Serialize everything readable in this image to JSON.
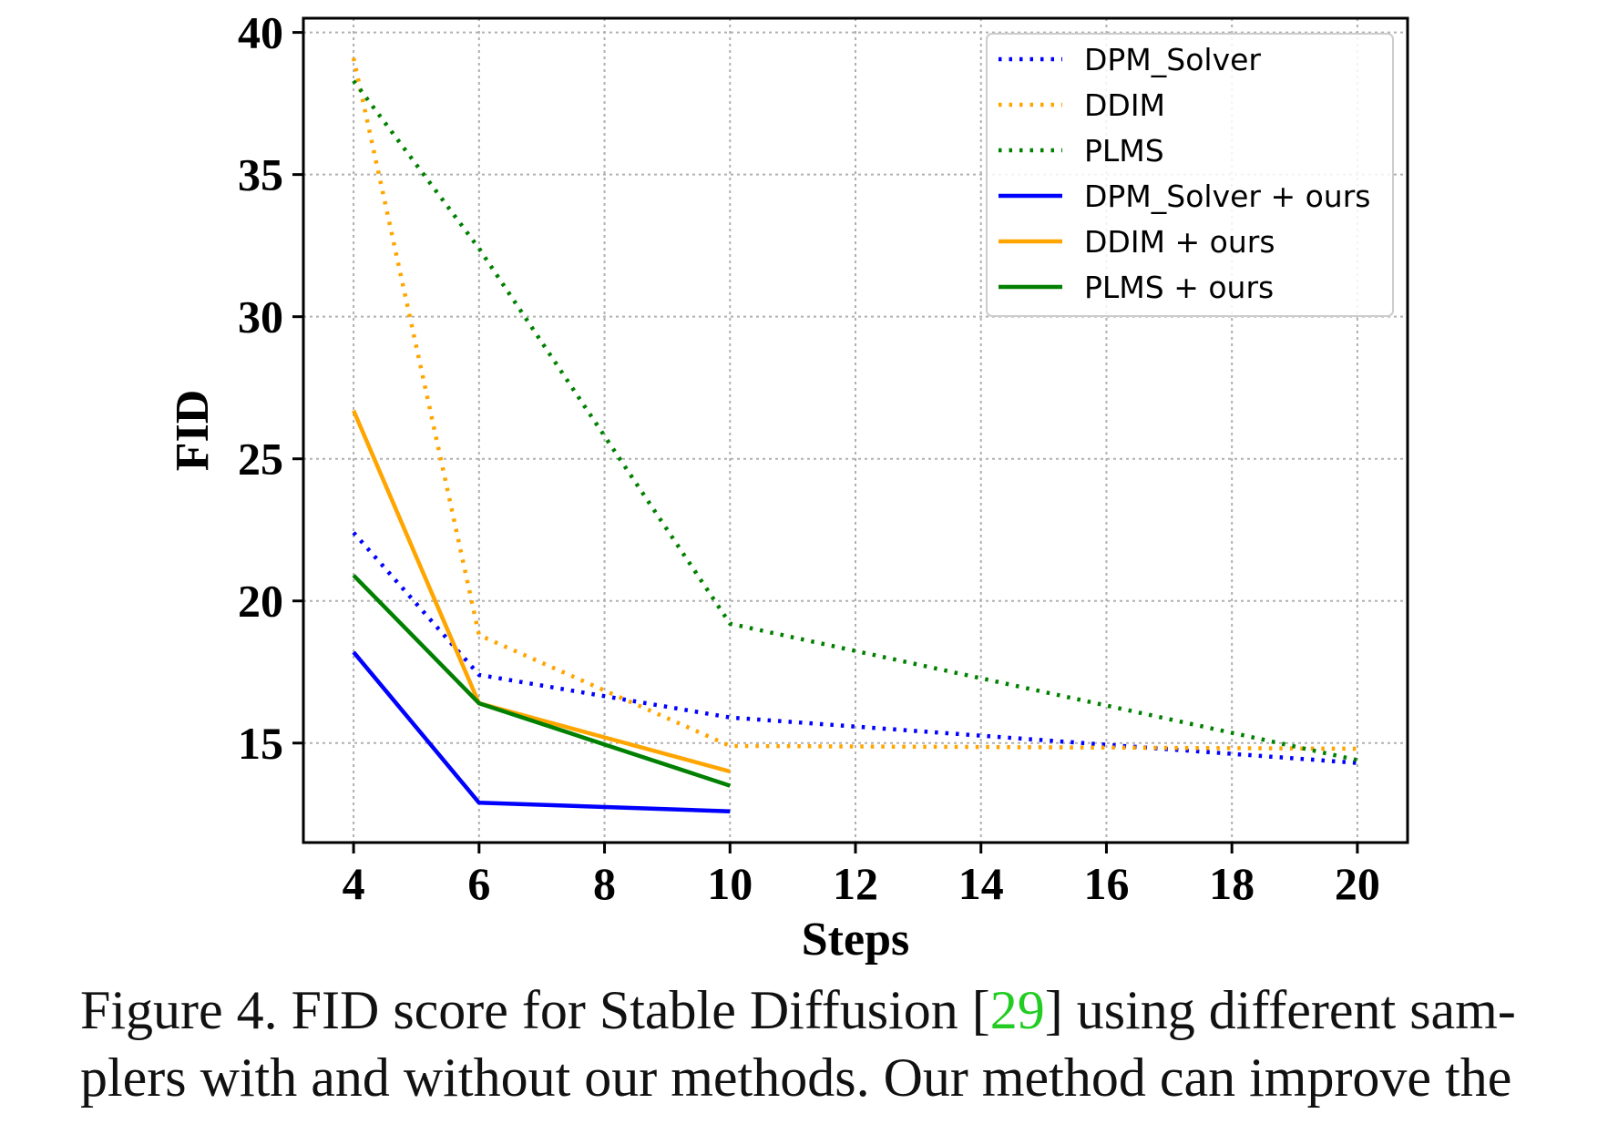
{
  "chart_data": {
    "type": "line",
    "xlabel": "Steps",
    "ylabel": "FID",
    "xlim": [
      3.2,
      20.8
    ],
    "ylim": [
      11.5,
      40.5
    ],
    "xticks": [
      4,
      6,
      8,
      10,
      12,
      14,
      16,
      18,
      20
    ],
    "yticks": [
      15,
      20,
      25,
      30,
      35,
      40
    ],
    "grid": true,
    "legend_position": "top-right",
    "series": [
      {
        "name": "DPM_Solver",
        "style": "dotted",
        "color": "#0000ff",
        "x": [
          4,
          6,
          10,
          20
        ],
        "y": [
          22.4,
          17.4,
          15.9,
          14.3
        ]
      },
      {
        "name": "DDIM",
        "style": "dotted",
        "color": "#ffa500",
        "x": [
          4,
          6,
          10,
          20
        ],
        "y": [
          39.1,
          18.8,
          14.9,
          14.8
        ]
      },
      {
        "name": "PLMS",
        "style": "dotted",
        "color": "#008000",
        "x": [
          4,
          6,
          10,
          20
        ],
        "y": [
          38.3,
          32.4,
          19.2,
          14.4
        ]
      },
      {
        "name": "DPM_Solver + ours",
        "style": "solid",
        "color": "#0000ff",
        "x": [
          4,
          6,
          10
        ],
        "y": [
          18.2,
          12.9,
          12.6
        ]
      },
      {
        "name": "DDIM + ours",
        "style": "solid",
        "color": "#ffa500",
        "x": [
          4,
          6,
          10
        ],
        "y": [
          26.7,
          16.4,
          14.0
        ]
      },
      {
        "name": "PLMS + ours",
        "style": "solid",
        "color": "#008000",
        "x": [
          4,
          6,
          10
        ],
        "y": [
          20.9,
          16.4,
          13.5
        ]
      }
    ]
  },
  "caption": {
    "line1_before": "Figure 4. FID score for Stable Diffusion [",
    "cite": "29",
    "line1_after": "] using different sam-",
    "line2": "plers with and without our methods. Our method can improve the"
  }
}
